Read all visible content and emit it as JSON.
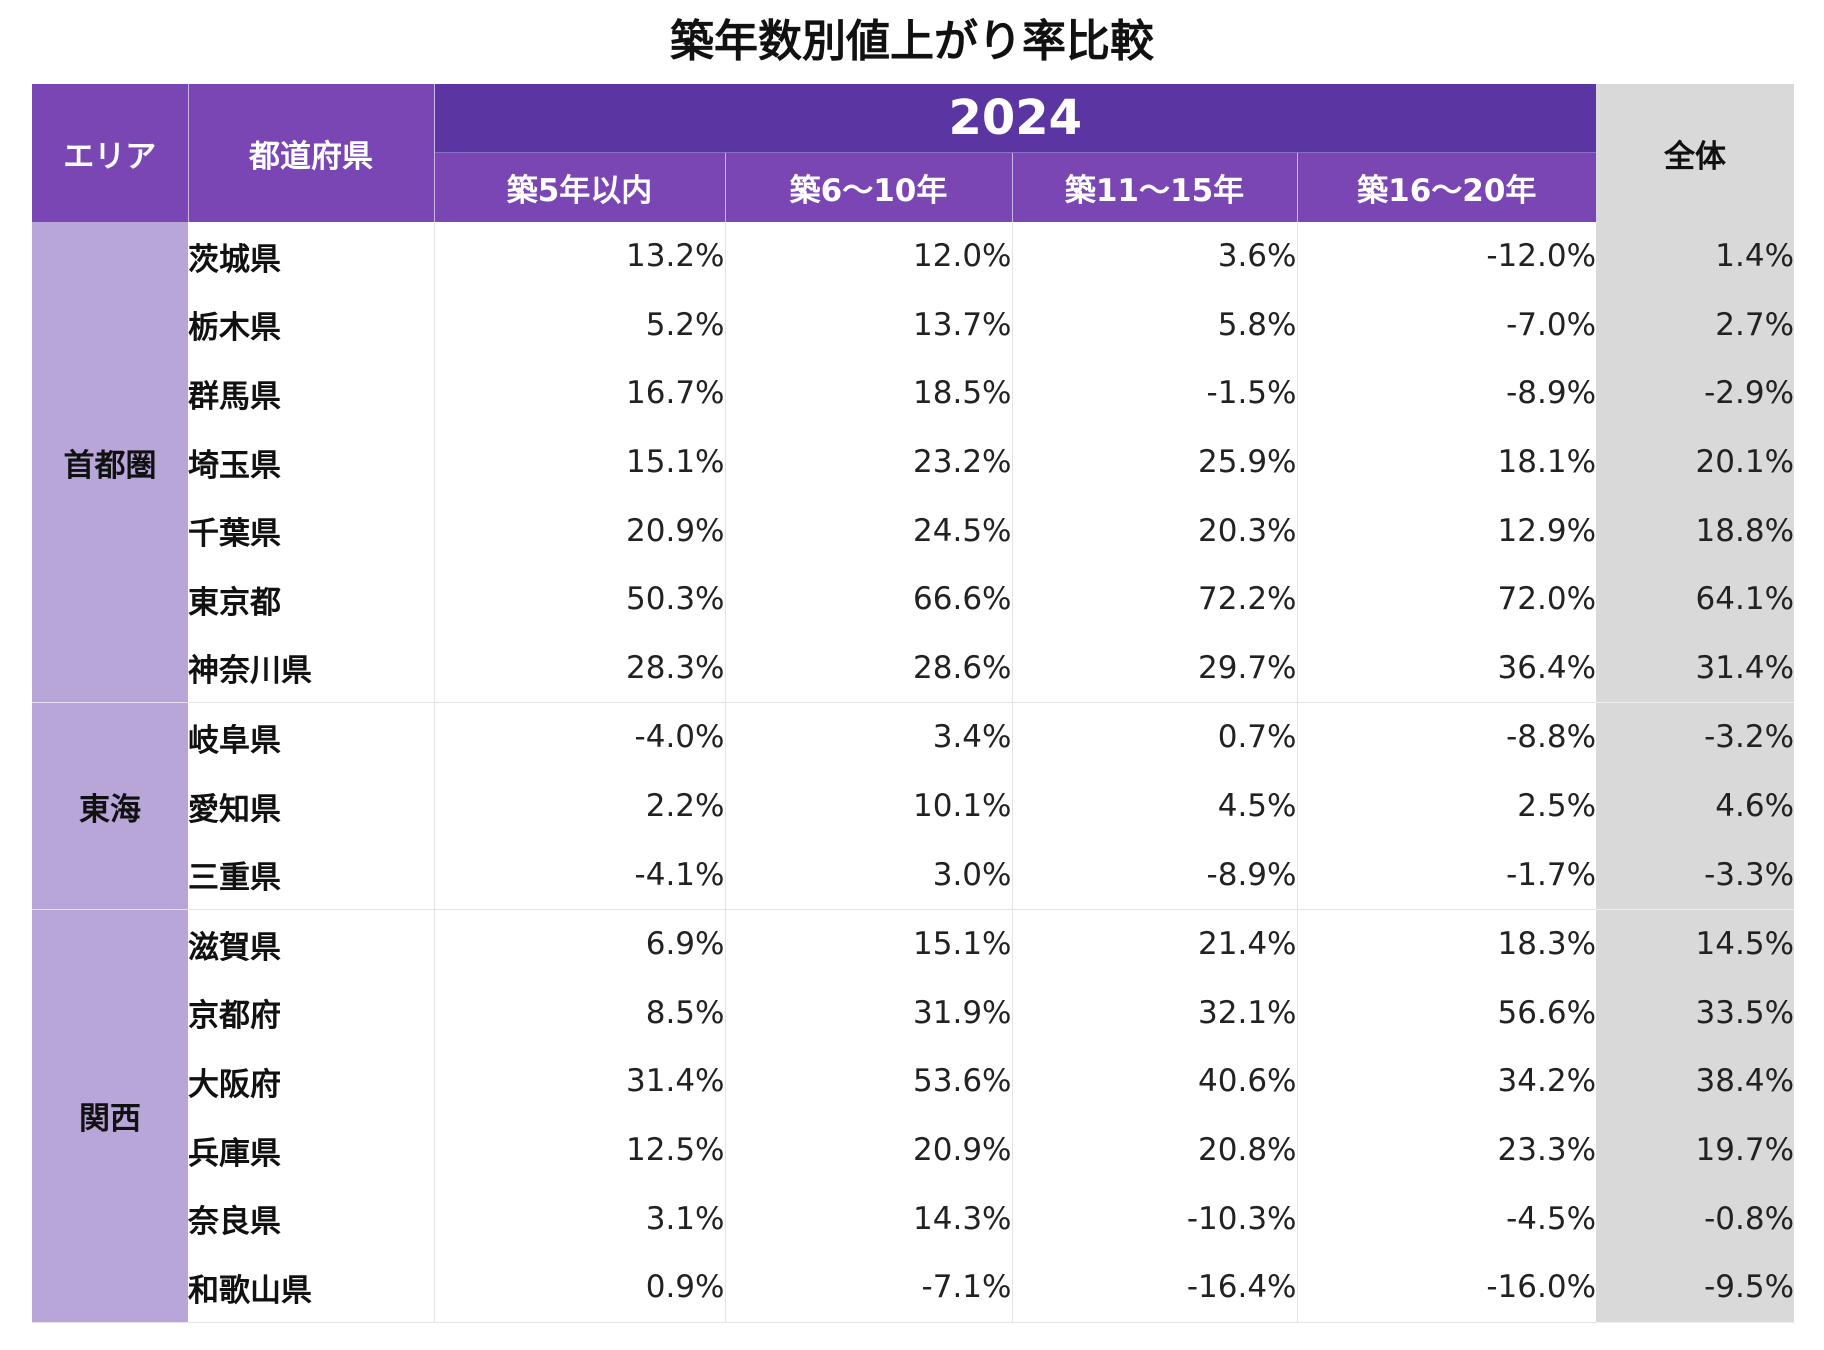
{
  "title": "築年数別値上がり率比較",
  "headers": {
    "area": "エリア",
    "prefecture": "都道府県",
    "year": "2024",
    "total": "全体",
    "columns": [
      "築5年以内",
      "築6〜10年",
      "築11〜15年",
      "築16〜20年"
    ]
  },
  "colors": {
    "header_purple": "#7a46b4",
    "year_purple": "#5b35a1",
    "area_lavender": "#b8a6d9",
    "total_gray": "#d9d9d9"
  },
  "chart_data": {
    "type": "table",
    "title": "築年数別値上がり率比較",
    "year": "2024",
    "columns": [
      "築5年以内",
      "築6〜10年",
      "築11〜15年",
      "築16〜20年",
      "全体"
    ],
    "groups": [
      {
        "area": "首都圏",
        "rows": [
          {
            "prefecture": "茨城県",
            "values": [
              "13.2%",
              "12.0%",
              "3.6%",
              "-12.0%"
            ],
            "total": "1.4%"
          },
          {
            "prefecture": "栃木県",
            "values": [
              "5.2%",
              "13.7%",
              "5.8%",
              "-7.0%"
            ],
            "total": "2.7%"
          },
          {
            "prefecture": "群馬県",
            "values": [
              "16.7%",
              "18.5%",
              "-1.5%",
              "-8.9%"
            ],
            "total": "-2.9%"
          },
          {
            "prefecture": "埼玉県",
            "values": [
              "15.1%",
              "23.2%",
              "25.9%",
              "18.1%"
            ],
            "total": "20.1%"
          },
          {
            "prefecture": "千葉県",
            "values": [
              "20.9%",
              "24.5%",
              "20.3%",
              "12.9%"
            ],
            "total": "18.8%"
          },
          {
            "prefecture": "東京都",
            "values": [
              "50.3%",
              "66.6%",
              "72.2%",
              "72.0%"
            ],
            "total": "64.1%"
          },
          {
            "prefecture": "神奈川県",
            "values": [
              "28.3%",
              "28.6%",
              "29.7%",
              "36.4%"
            ],
            "total": "31.4%"
          }
        ]
      },
      {
        "area": "東海",
        "rows": [
          {
            "prefecture": "岐阜県",
            "values": [
              "-4.0%",
              "3.4%",
              "0.7%",
              "-8.8%"
            ],
            "total": "-3.2%"
          },
          {
            "prefecture": "愛知県",
            "values": [
              "2.2%",
              "10.1%",
              "4.5%",
              "2.5%"
            ],
            "total": "4.6%"
          },
          {
            "prefecture": "三重県",
            "values": [
              "-4.1%",
              "3.0%",
              "-8.9%",
              "-1.7%"
            ],
            "total": "-3.3%"
          }
        ]
      },
      {
        "area": "関西",
        "rows": [
          {
            "prefecture": "滋賀県",
            "values": [
              "6.9%",
              "15.1%",
              "21.4%",
              "18.3%"
            ],
            "total": "14.5%"
          },
          {
            "prefecture": "京都府",
            "values": [
              "8.5%",
              "31.9%",
              "32.1%",
              "56.6%"
            ],
            "total": "33.5%"
          },
          {
            "prefecture": "大阪府",
            "values": [
              "31.4%",
              "53.6%",
              "40.6%",
              "34.2%"
            ],
            "total": "38.4%"
          },
          {
            "prefecture": "兵庫県",
            "values": [
              "12.5%",
              "20.9%",
              "20.8%",
              "23.3%"
            ],
            "total": "19.7%"
          },
          {
            "prefecture": "奈良県",
            "values": [
              "3.1%",
              "14.3%",
              "-10.3%",
              "-4.5%"
            ],
            "total": "-0.8%"
          },
          {
            "prefecture": "和歌山県",
            "values": [
              "0.9%",
              "-7.1%",
              "-16.4%",
              "-16.0%"
            ],
            "total": "-9.5%"
          }
        ]
      }
    ]
  }
}
